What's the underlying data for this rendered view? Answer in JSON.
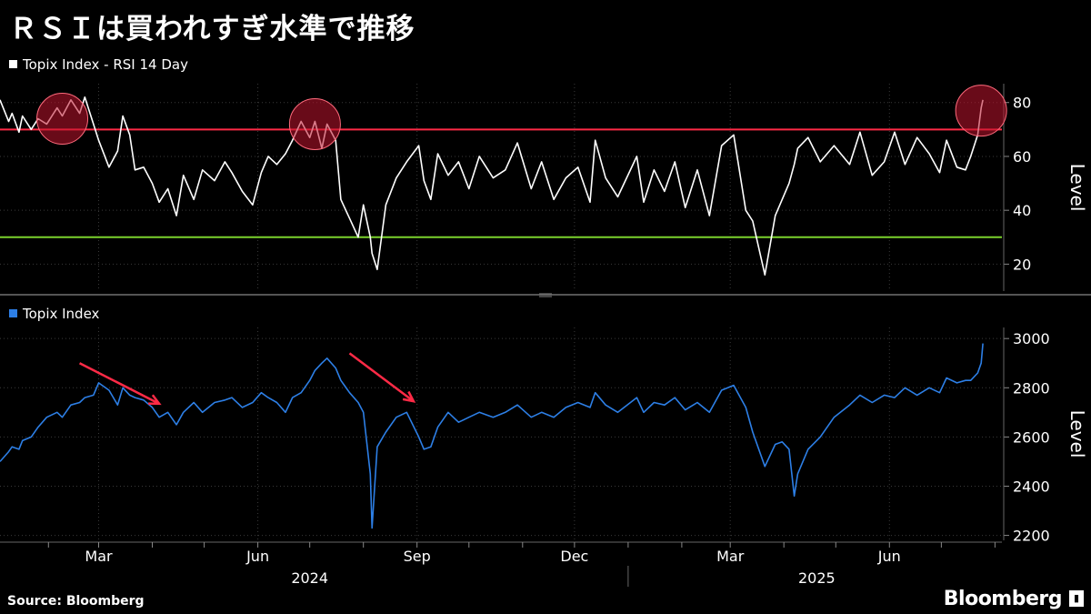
{
  "title": "ＲＳＩは買われすぎ水準で推移",
  "source": "Source: Bloomberg",
  "brand": "Bloomberg",
  "colors": {
    "rsi": "#ffffff",
    "topix": "#2d7fe6",
    "overbought": "#ff2a46",
    "oversold": "#7bd12c",
    "marker": "#c0142e",
    "arrow": "#ff2a46"
  },
  "chart_data": [
    {
      "type": "line",
      "legend": "Topix Index  - RSI 14 Day",
      "ylabel": "Level",
      "ylim": [
        10,
        87
      ],
      "yticks": [
        20,
        40,
        60,
        80
      ],
      "reference_lines": [
        70,
        30
      ],
      "x": [
        "2024-01-04",
        "2024-01-09",
        "2024-01-11",
        "2024-01-15",
        "2024-01-17",
        "2024-01-22",
        "2024-01-26",
        "2024-01-31",
        "2024-02-06",
        "2024-02-09",
        "2024-02-14",
        "2024-02-19",
        "2024-02-22",
        "2024-02-27",
        "2024-03-01",
        "2024-03-07",
        "2024-03-12",
        "2024-03-15",
        "2024-03-19",
        "2024-03-22",
        "2024-03-27",
        "2024-04-01",
        "2024-04-05",
        "2024-04-10",
        "2024-04-15",
        "2024-04-19",
        "2024-04-25",
        "2024-04-30",
        "2024-05-07",
        "2024-05-13",
        "2024-05-17",
        "2024-05-23",
        "2024-05-29",
        "2024-06-03",
        "2024-06-07",
        "2024-06-12",
        "2024-06-17",
        "2024-06-21",
        "2024-06-26",
        "2024-07-01",
        "2024-07-04",
        "2024-07-08",
        "2024-07-11",
        "2024-07-16",
        "2024-07-19",
        "2024-07-24",
        "2024-07-29",
        "2024-08-01",
        "2024-08-05",
        "2024-08-06",
        "2024-08-09",
        "2024-08-14",
        "2024-08-20",
        "2024-08-26",
        "2024-09-02",
        "2024-09-05",
        "2024-09-09",
        "2024-09-13",
        "2024-09-19",
        "2024-09-25",
        "2024-10-01",
        "2024-10-07",
        "2024-10-15",
        "2024-10-22",
        "2024-10-29",
        "2024-11-06",
        "2024-11-12",
        "2024-11-19",
        "2024-11-26",
        "2024-12-03",
        "2024-12-10",
        "2024-12-13",
        "2024-12-19",
        "2024-12-26",
        "2025-01-06",
        "2025-01-10",
        "2025-01-16",
        "2025-01-22",
        "2025-01-28",
        "2025-02-03",
        "2025-02-10",
        "2025-02-17",
        "2025-02-24",
        "2025-03-03",
        "2025-03-10",
        "2025-03-14",
        "2025-03-21",
        "2025-03-27",
        "2025-03-31",
        "2025-04-04",
        "2025-04-07",
        "2025-04-09",
        "2025-04-15",
        "2025-04-22",
        "2025-04-30",
        "2025-05-09",
        "2025-05-15",
        "2025-05-22",
        "2025-05-29",
        "2025-06-04",
        "2025-06-10",
        "2025-06-17",
        "2025-06-24",
        "2025-06-30",
        "2025-07-04",
        "2025-07-10",
        "2025-07-15",
        "2025-07-18",
        "2025-07-22",
        "2025-07-24",
        "2025-07-25"
      ],
      "series": [
        {
          "name": "RSI 14 Day",
          "values": [
            81,
            73,
            76,
            69,
            75,
            70,
            74,
            72,
            78,
            75,
            81,
            76,
            82,
            72,
            66,
            56,
            62,
            75,
            68,
            55,
            56,
            50,
            43,
            48,
            38,
            53,
            44,
            55,
            51,
            58,
            54,
            47,
            42,
            54,
            60,
            57,
            61,
            66,
            73,
            67,
            73,
            63,
            72,
            66,
            44,
            37,
            30,
            42,
            30,
            24,
            18,
            42,
            52,
            58,
            64,
            51,
            44,
            61,
            53,
            58,
            48,
            60,
            52,
            55,
            65,
            48,
            58,
            44,
            52,
            56,
            43,
            66,
            52,
            45,
            60,
            43,
            55,
            47,
            58,
            41,
            55,
            38,
            64,
            68,
            40,
            36,
            16,
            38,
            44,
            50,
            57,
            63,
            67,
            58,
            64,
            57,
            69,
            53,
            58,
            69,
            57,
            67,
            61,
            54,
            66,
            56,
            55,
            60,
            68,
            78,
            81
          ]
        }
      ]
    },
    {
      "type": "line",
      "legend": "Topix Index",
      "ylabel": "Level",
      "ylim": [
        2180,
        3045
      ],
      "yticks": [
        2200,
        2400,
        2600,
        2800,
        3000
      ],
      "x": [
        "2024-01-04",
        "2024-01-09",
        "2024-01-11",
        "2024-01-15",
        "2024-01-17",
        "2024-01-22",
        "2024-01-26",
        "2024-01-31",
        "2024-02-06",
        "2024-02-09",
        "2024-02-14",
        "2024-02-19",
        "2024-02-22",
        "2024-02-27",
        "2024-03-01",
        "2024-03-07",
        "2024-03-12",
        "2024-03-15",
        "2024-03-19",
        "2024-03-22",
        "2024-03-27",
        "2024-04-01",
        "2024-04-05",
        "2024-04-10",
        "2024-04-15",
        "2024-04-19",
        "2024-04-25",
        "2024-04-30",
        "2024-05-07",
        "2024-05-13",
        "2024-05-17",
        "2024-05-23",
        "2024-05-29",
        "2024-06-03",
        "2024-06-07",
        "2024-06-12",
        "2024-06-17",
        "2024-06-21",
        "2024-06-26",
        "2024-07-01",
        "2024-07-04",
        "2024-07-08",
        "2024-07-11",
        "2024-07-16",
        "2024-07-19",
        "2024-07-24",
        "2024-07-29",
        "2024-08-01",
        "2024-08-05",
        "2024-08-06",
        "2024-08-09",
        "2024-08-14",
        "2024-08-20",
        "2024-08-26",
        "2024-09-02",
        "2024-09-05",
        "2024-09-09",
        "2024-09-13",
        "2024-09-19",
        "2024-09-25",
        "2024-10-01",
        "2024-10-07",
        "2024-10-15",
        "2024-10-22",
        "2024-10-29",
        "2024-11-06",
        "2024-11-12",
        "2024-11-19",
        "2024-11-26",
        "2024-12-03",
        "2024-12-10",
        "2024-12-13",
        "2024-12-19",
        "2024-12-26",
        "2025-01-06",
        "2025-01-10",
        "2025-01-16",
        "2025-01-22",
        "2025-01-28",
        "2025-02-03",
        "2025-02-10",
        "2025-02-17",
        "2025-02-24",
        "2025-03-03",
        "2025-03-10",
        "2025-03-14",
        "2025-03-21",
        "2025-03-27",
        "2025-03-31",
        "2025-04-04",
        "2025-04-07",
        "2025-04-09",
        "2025-04-15",
        "2025-04-22",
        "2025-04-30",
        "2025-05-09",
        "2025-05-15",
        "2025-05-22",
        "2025-05-29",
        "2025-06-04",
        "2025-06-10",
        "2025-06-17",
        "2025-06-24",
        "2025-06-30",
        "2025-07-04",
        "2025-07-10",
        "2025-07-15",
        "2025-07-18",
        "2025-07-22",
        "2025-07-24",
        "2025-07-25"
      ],
      "series": [
        {
          "name": "Topix Index",
          "values": [
            2500,
            2540,
            2560,
            2550,
            2585,
            2600,
            2640,
            2680,
            2700,
            2680,
            2730,
            2740,
            2760,
            2770,
            2820,
            2790,
            2730,
            2800,
            2770,
            2760,
            2750,
            2720,
            2680,
            2700,
            2650,
            2700,
            2740,
            2700,
            2740,
            2750,
            2760,
            2720,
            2740,
            2780,
            2760,
            2740,
            2700,
            2760,
            2780,
            2830,
            2870,
            2900,
            2920,
            2880,
            2830,
            2780,
            2740,
            2700,
            2450,
            2230,
            2560,
            2620,
            2680,
            2700,
            2600,
            2550,
            2560,
            2640,
            2700,
            2660,
            2680,
            2700,
            2680,
            2700,
            2730,
            2680,
            2700,
            2680,
            2720,
            2740,
            2720,
            2780,
            2730,
            2700,
            2760,
            2700,
            2740,
            2730,
            2760,
            2710,
            2740,
            2700,
            2790,
            2810,
            2720,
            2620,
            2480,
            2570,
            2580,
            2550,
            2360,
            2450,
            2550,
            2600,
            2680,
            2730,
            2770,
            2740,
            2770,
            2760,
            2800,
            2770,
            2800,
            2780,
            2840,
            2820,
            2830,
            2830,
            2860,
            2900,
            2980
          ]
        }
      ]
    }
  ],
  "axis": {
    "months": [
      {
        "label": "Mar",
        "date": "2024-03-01"
      },
      {
        "label": "Jun",
        "date": "2024-06-01"
      },
      {
        "label": "Sep",
        "date": "2024-09-01"
      },
      {
        "label": "Dec",
        "date": "2024-12-01"
      },
      {
        "label": "Mar",
        "date": "2025-03-01"
      },
      {
        "label": "Jun",
        "date": "2025-06-01"
      }
    ],
    "years": [
      {
        "label": "2024",
        "date": "2024-07-01"
      },
      {
        "label": "2025",
        "date": "2025-04-20"
      }
    ],
    "year_divider": "2025-01-01",
    "x_start": "2024-01-04",
    "x_end": "2025-08-05"
  },
  "annotations": {
    "overbought_marks": [
      "2024-02-09",
      "2024-07-04",
      "2025-07-24"
    ],
    "drop_arrows": [
      {
        "from": "2024-02-19",
        "to": "2024-04-05",
        "from_value": 2900,
        "to_value": 2735
      },
      {
        "from": "2024-07-24",
        "to": "2024-08-30",
        "from_value": 2940,
        "to_value": 2745
      }
    ]
  }
}
